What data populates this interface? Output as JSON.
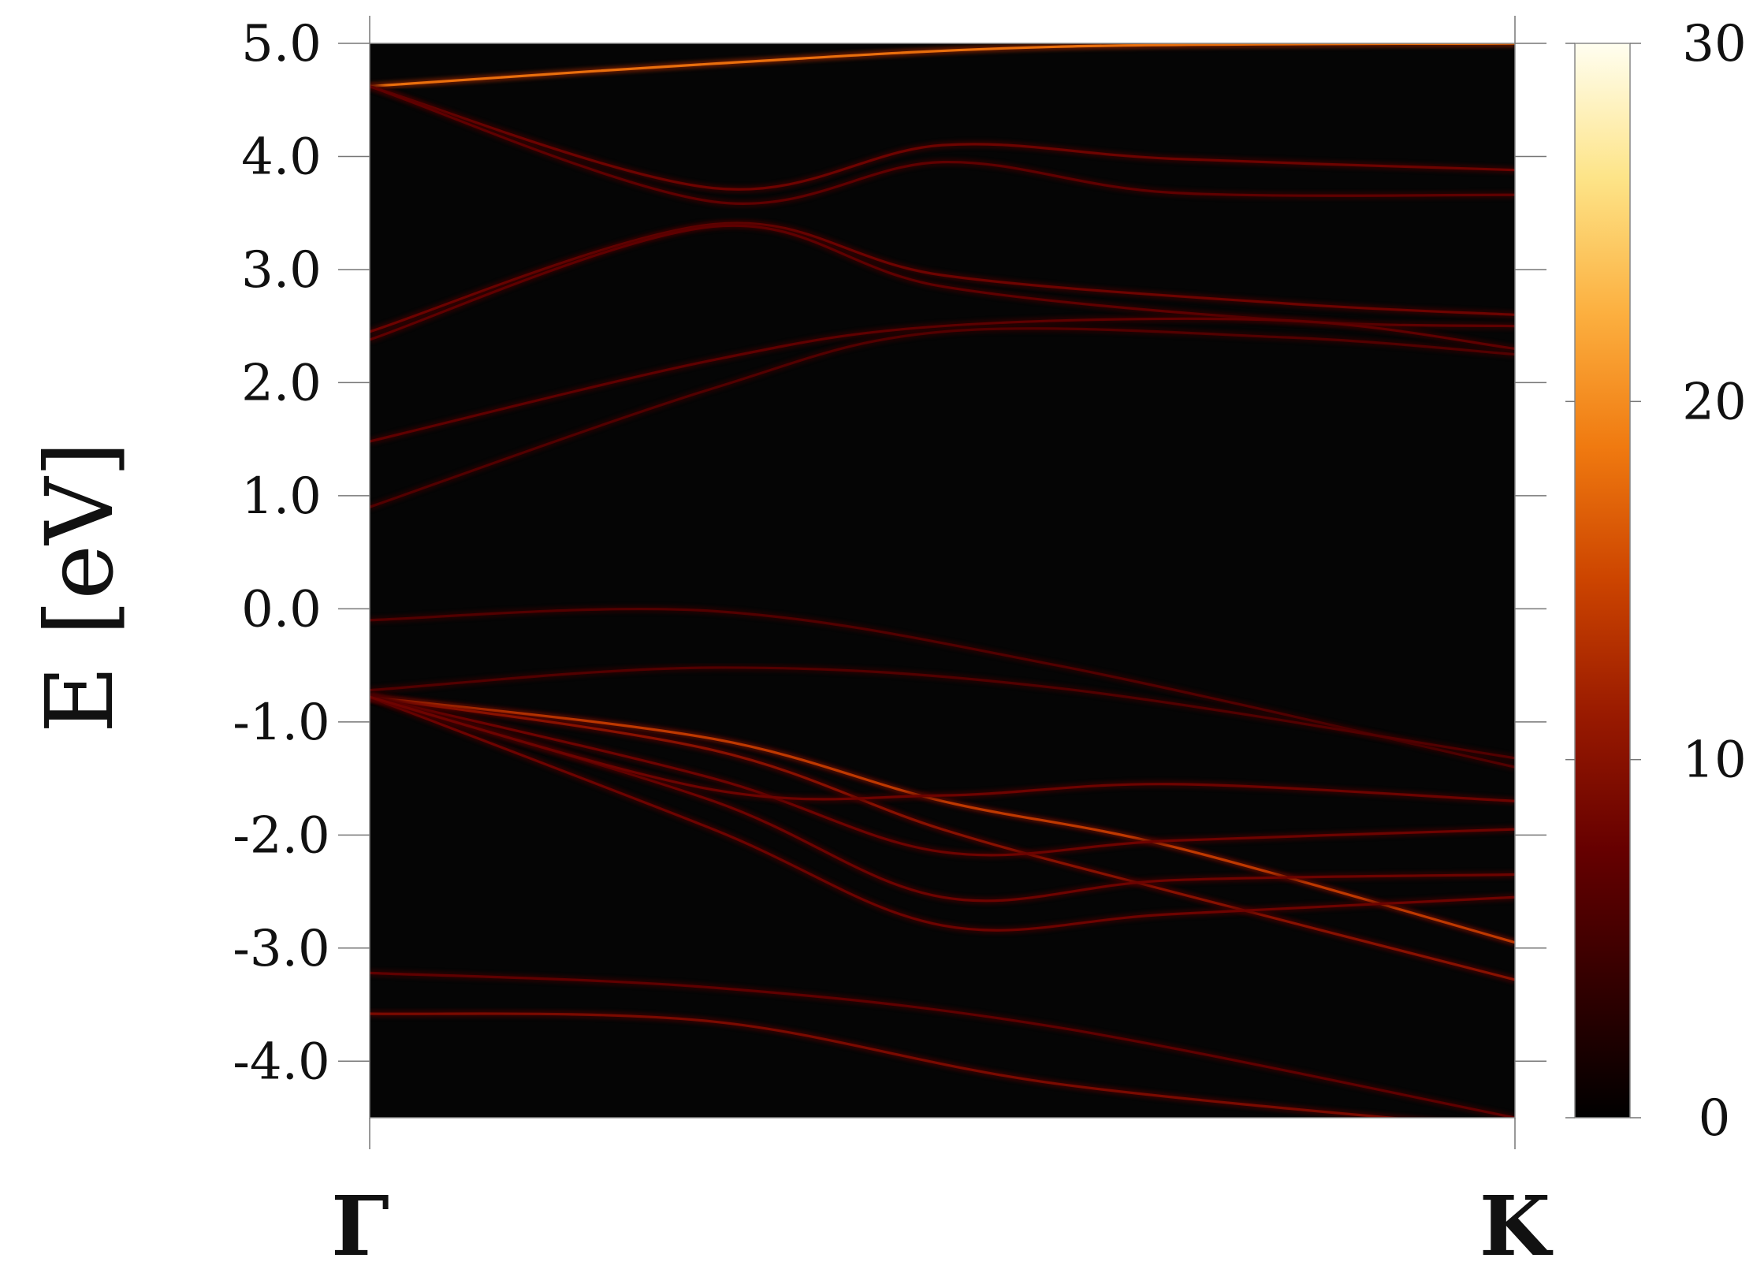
{
  "chart_data": {
    "type": "heatmap",
    "title": "",
    "ylabel": "E [eV]",
    "xlabel": "",
    "x_ticks": [
      "Γ",
      "K"
    ],
    "y_ticks": [
      "5.0",
      "4.0",
      "3.0",
      "2.0",
      "1.0",
      "0.0",
      "-1.0",
      "-2.0",
      "-3.0",
      "-4.0"
    ],
    "ylim": [
      -4.5,
      5.0
    ],
    "xlim": [
      0,
      1
    ],
    "colorbar": {
      "ticks": [
        "0",
        "10",
        "20",
        "30"
      ],
      "range": [
        0,
        30
      ],
      "colormap": [
        "#000000",
        "#330000",
        "#660000",
        "#991a00",
        "#cc4400",
        "#f07a10",
        "#fcb040",
        "#fde488",
        "#fffef0"
      ]
    },
    "background": "#050505",
    "series": [
      {
        "x": [
          0,
          0.3,
          0.6,
          1.0
        ],
        "y": [
          4.62,
          4.82,
          4.97,
          5.0
        ],
        "intensity": 18
      },
      {
        "x": [
          0,
          0.3,
          0.5,
          0.7,
          1.0
        ],
        "y": [
          4.62,
          3.72,
          4.1,
          3.98,
          3.88
        ],
        "intensity": 8
      },
      {
        "x": [
          0,
          0.3,
          0.5,
          0.7,
          1.0
        ],
        "y": [
          4.62,
          3.6,
          3.95,
          3.68,
          3.66
        ],
        "intensity": 7
      },
      {
        "x": [
          0,
          0.3,
          0.5,
          0.8,
          1.0
        ],
        "y": [
          2.45,
          3.4,
          2.95,
          2.7,
          2.6
        ],
        "intensity": 8
      },
      {
        "x": [
          0,
          0.3,
          0.5,
          0.8,
          1.0
        ],
        "y": [
          2.38,
          3.38,
          2.85,
          2.55,
          2.5
        ],
        "intensity": 7
      },
      {
        "x": [
          0,
          0.3,
          0.5,
          0.8,
          1.0
        ],
        "y": [
          1.48,
          2.2,
          2.5,
          2.55,
          2.3
        ],
        "intensity": 7
      },
      {
        "x": [
          0,
          0.3,
          0.5,
          0.8,
          1.0
        ],
        "y": [
          0.9,
          1.95,
          2.45,
          2.4,
          2.25
        ],
        "intensity": 6
      },
      {
        "x": [
          0,
          0.3,
          0.6,
          1.0
        ],
        "y": [
          -0.1,
          -0.02,
          -0.5,
          -1.4
        ],
        "intensity": 6
      },
      {
        "x": [
          0,
          0.3,
          0.6,
          1.0
        ],
        "y": [
          -0.72,
          -0.52,
          -0.7,
          -1.32
        ],
        "intensity": 6
      },
      {
        "x": [
          0,
          0.3,
          0.5,
          0.7,
          1.0
        ],
        "y": [
          -0.78,
          -1.15,
          -1.7,
          -2.1,
          -2.95
        ],
        "intensity": 14
      },
      {
        "x": [
          0,
          0.3,
          0.5,
          0.7,
          1.0
        ],
        "y": [
          -0.78,
          -1.25,
          -1.95,
          -2.5,
          -3.28
        ],
        "intensity": 10
      },
      {
        "x": [
          0,
          0.3,
          0.5,
          0.7,
          1.0
        ],
        "y": [
          -0.78,
          -1.5,
          -2.15,
          -2.05,
          -1.95
        ],
        "intensity": 8
      },
      {
        "x": [
          0,
          0.3,
          0.5,
          0.7,
          1.0
        ],
        "y": [
          -0.78,
          -1.7,
          -2.55,
          -2.4,
          -2.35
        ],
        "intensity": 8
      },
      {
        "x": [
          0,
          0.3,
          0.5,
          0.7,
          1.0
        ],
        "y": [
          -0.78,
          -1.95,
          -2.8,
          -2.7,
          -2.55
        ],
        "intensity": 8
      },
      {
        "x": [
          0,
          0.3,
          0.5,
          0.7,
          1.0
        ],
        "y": [
          -0.78,
          -1.6,
          -1.65,
          -1.55,
          -1.7
        ],
        "intensity": 8
      },
      {
        "x": [
          0,
          0.3,
          0.6,
          1.0
        ],
        "y": [
          -3.22,
          -3.35,
          -3.7,
          -4.5
        ],
        "intensity": 7
      },
      {
        "x": [
          0,
          0.3,
          0.6,
          1.0
        ],
        "y": [
          -3.58,
          -3.65,
          -4.2,
          -4.6
        ],
        "intensity": 9
      }
    ]
  }
}
